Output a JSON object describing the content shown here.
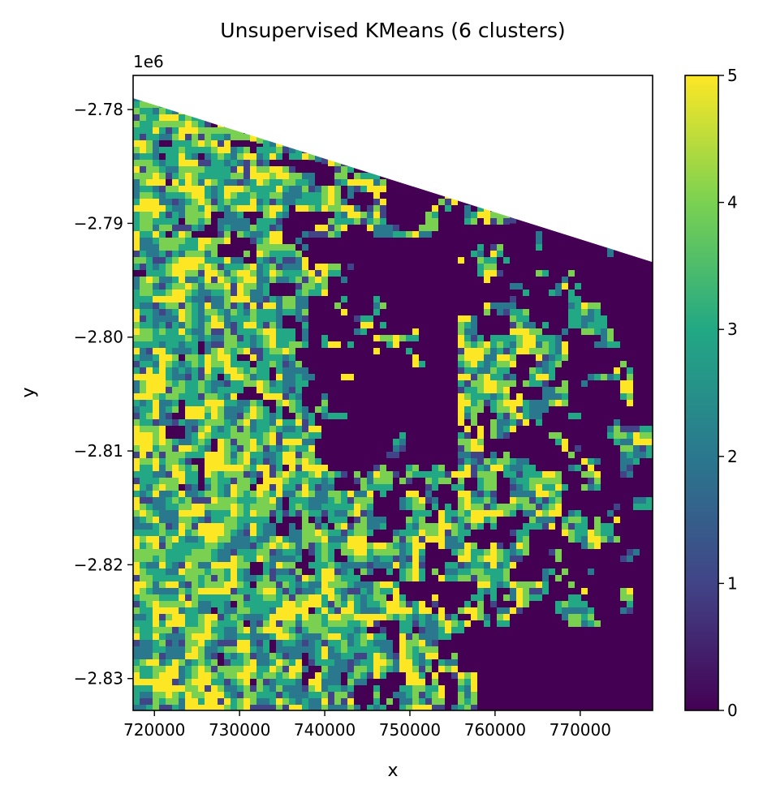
{
  "chart_data": {
    "type": "heatmap",
    "title": "Unsupervised KMeans (6 clusters)",
    "xlabel": "x",
    "ylabel": "y",
    "y_offset_label": "1e6",
    "xlim": [
      717500,
      778500
    ],
    "ylim": [
      -2.8328,
      -2.777
    ],
    "x_ticks": [
      720000,
      730000,
      740000,
      750000,
      760000,
      770000
    ],
    "x_tick_labels": [
      "720000",
      "730000",
      "740000",
      "750000",
      "760000",
      "770000"
    ],
    "y_ticks": [
      -2.78,
      -2.79,
      -2.8,
      -2.81,
      -2.82,
      -2.83
    ],
    "y_tick_labels": [
      "−2.78",
      "−2.79",
      "−2.80",
      "−2.81",
      "−2.82",
      "−2.83"
    ],
    "colorbar": {
      "min": 0,
      "max": 5,
      "ticks": [
        0,
        1,
        2,
        3,
        4,
        5
      ],
      "tick_labels": [
        "0",
        "1",
        "2",
        "3",
        "4",
        "5"
      ],
      "colormap": "viridis",
      "colors": [
        "#440154",
        "#414487",
        "#2a788e",
        "#22a884",
        "#7ad151",
        "#fde725"
      ]
    },
    "clusters": [
      0,
      1,
      2,
      3,
      4,
      5
    ],
    "data_extent": {
      "top_edge_left": [
        717500,
        -2.779
      ],
      "top_edge_right": [
        778500,
        -2.7934
      ],
      "bottom_edge_left": [
        717500,
        -2.8328
      ],
      "bottom_edge_right": [
        778500,
        -2.8328
      ]
    },
    "grid": false,
    "legend": "colorbar-right"
  }
}
